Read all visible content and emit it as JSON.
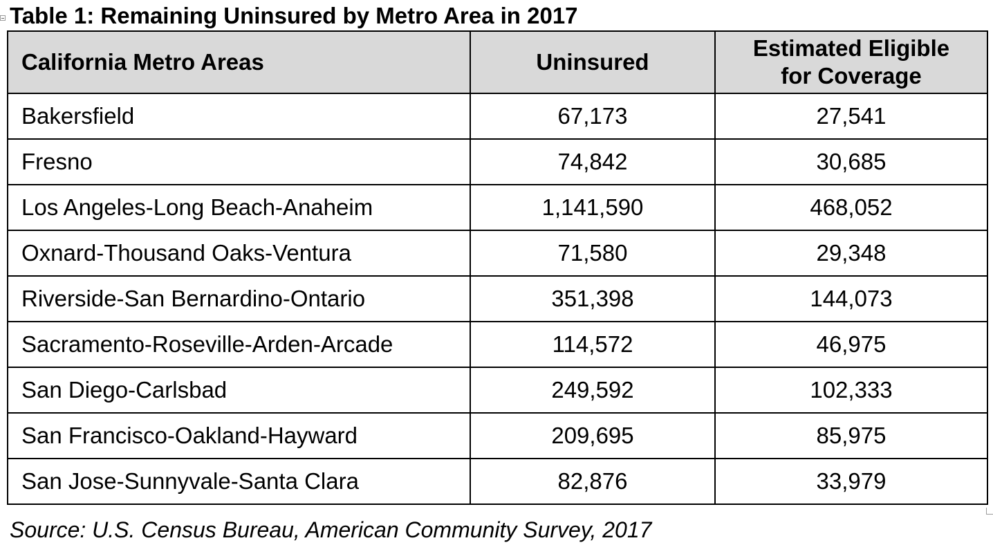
{
  "caption": "Table 1: Remaining Uninsured by Metro Area in 2017",
  "table": {
    "headers": {
      "metro": "California Metro Areas",
      "uninsured": "Uninsured",
      "eligible_line1": "Estimated Eligible",
      "eligible_line2": "for Coverage"
    },
    "rows": [
      {
        "metro": "Bakersfield",
        "uninsured": "67,173",
        "eligible": "27,541"
      },
      {
        "metro": "Fresno",
        "uninsured": "74,842",
        "eligible": "30,685"
      },
      {
        "metro": "Los Angeles-Long Beach-Anaheim",
        "uninsured": "1,141,590",
        "eligible": "468,052"
      },
      {
        "metro": "Oxnard-Thousand Oaks-Ventura",
        "uninsured": "71,580",
        "eligible": "29,348"
      },
      {
        "metro": "Riverside-San Bernardino-Ontario",
        "uninsured": "351,398",
        "eligible": "144,073"
      },
      {
        "metro": "Sacramento-Roseville-Arden-Arcade",
        "uninsured": "114,572",
        "eligible": "46,975"
      },
      {
        "metro": "San Diego-Carlsbad",
        "uninsured": "249,592",
        "eligible": "102,333"
      },
      {
        "metro": "San Francisco-Oakland-Hayward",
        "uninsured": "209,695",
        "eligible": "85,975"
      },
      {
        "metro": "San Jose-Sunnyvale-Santa Clara",
        "uninsured": "82,876",
        "eligible": "33,979"
      }
    ]
  },
  "source": "Source: U.S. Census Bureau, American Community Survey, 2017",
  "colors": {
    "header_background": "#d9d9d9",
    "border": "#000000",
    "text": "#000000"
  }
}
